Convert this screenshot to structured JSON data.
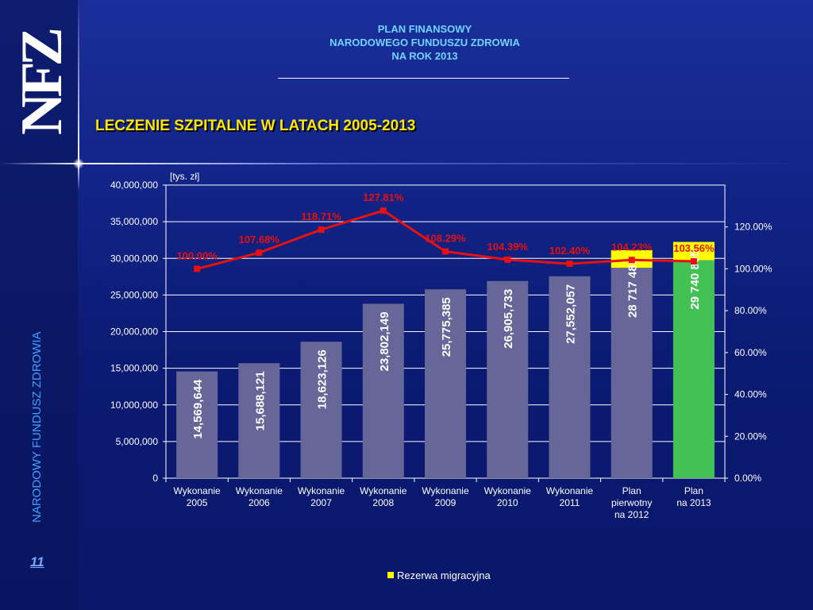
{
  "header": {
    "line1": "PLAN FINANSOWY",
    "line2": "NARODOWEGO FUNDUSZU ZDROWIA",
    "line3": "NA ROK 2013"
  },
  "slide_title": "LECZENIE SZPITALNE W LATACH 2005-2013",
  "logo_text": "NFZ",
  "side_text": "NARODOWY FUNDUSZ ZDROWIA",
  "page_number": "11",
  "colors": {
    "bar_default": "#666699",
    "bar_highlight": "#44c155",
    "reserve": "#ffff00",
    "line": "#e81010",
    "title": "#ffe600",
    "header": "#6fd4ff"
  },
  "chart_data": {
    "type": "bar",
    "unit_label": "[tys. zł]",
    "categories": [
      [
        "Wykonanie",
        "2005"
      ],
      [
        "Wykonanie",
        "2006"
      ],
      [
        "Wykonanie",
        "2007"
      ],
      [
        "Wykonanie",
        "2008"
      ],
      [
        "Wykonanie",
        "2009"
      ],
      [
        "Wykonanie",
        "2010"
      ],
      [
        "Wykonanie",
        "2011"
      ],
      [
        "Plan",
        "pierwotny",
        "na 2012"
      ],
      [
        "Plan",
        "na 2013"
      ]
    ],
    "values": [
      14569644,
      15688121,
      18623126,
      23802149,
      25775385,
      26905733,
      27552057,
      28717489,
      29740805
    ],
    "value_labels": [
      "14,569,644",
      "15,688,121",
      "18,623,126",
      "23,802,149",
      "25,775,385",
      "26,905,733",
      "27,552,057",
      "28 717 489",
      "29 740 805"
    ],
    "reserve": [
      0,
      0,
      0,
      0,
      0,
      0,
      0,
      2400000,
      2500000
    ],
    "highlight_index": 8,
    "percent_series": {
      "values": [
        100.0,
        107.68,
        118.71,
        127.81,
        108.29,
        104.39,
        102.4,
        104.23,
        103.56
      ],
      "labels": [
        "100.00%",
        "107.68%",
        "118.71%",
        "127.81%",
        "108.29%",
        "104.39%",
        "102.40%",
        "104.23%",
        "103.56%"
      ]
    },
    "y_left": {
      "min": 0,
      "max": 40000000,
      "ticks": [
        "0",
        "5,000,000",
        "10,000,000",
        "15,000,000",
        "20,000,000",
        "25,000,000",
        "30,000,000",
        "35,000,000",
        "40,000,000"
      ]
    },
    "y_right": {
      "min": 0,
      "max": 140,
      "ticks": [
        "0.00%",
        "20.00%",
        "40.00%",
        "60.00%",
        "80.00%",
        "100.00%",
        "120.00%"
      ]
    },
    "legend": {
      "label": "Rezerwa migracyjna",
      "position": "bottom"
    },
    "grid": true
  }
}
